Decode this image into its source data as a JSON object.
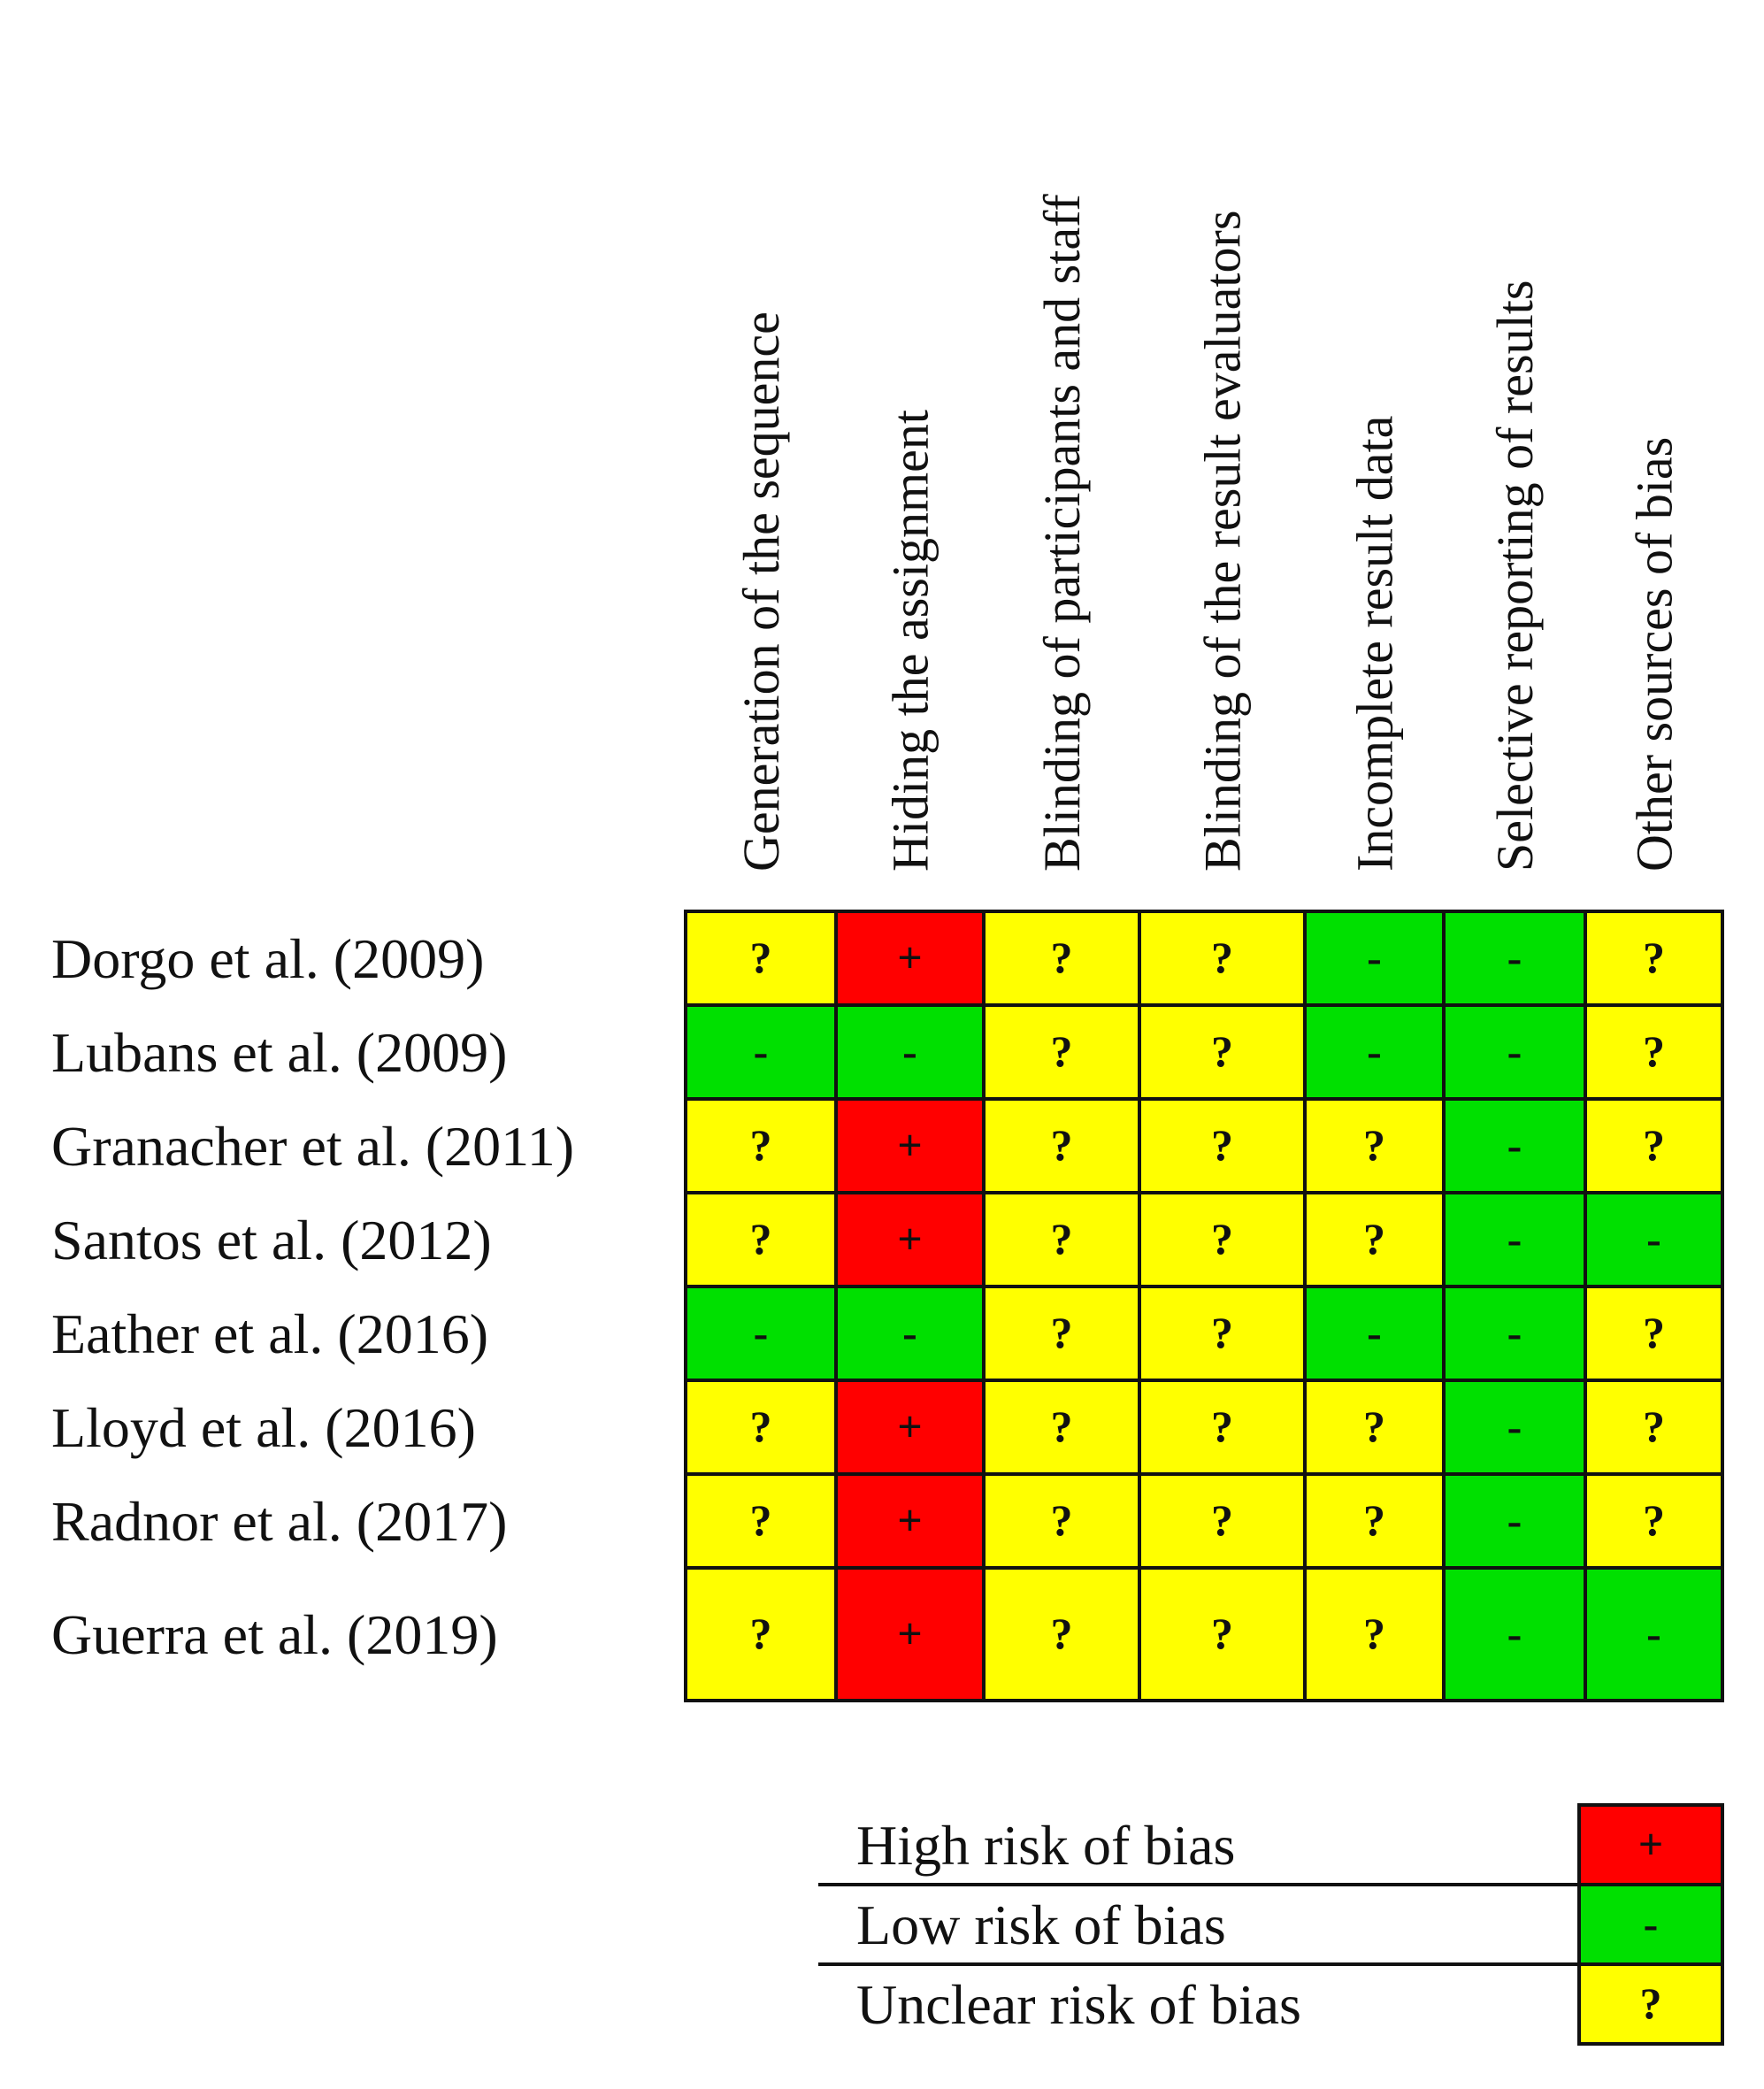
{
  "chart_data": {
    "type": "heatmap",
    "columns": [
      "Generation of the sequence",
      "Hiding the assignment",
      "Blinding of participants and staff",
      "Blinding of the result evaluators",
      "Incomplete result data",
      "Selective reporting of results",
      "Other sources of bias"
    ],
    "rows": [
      {
        "label": "Dorgo et al. (2009)",
        "values": [
          "?",
          "+",
          "?",
          "?",
          "-",
          "-",
          "?"
        ]
      },
      {
        "label": "Lubans et al. (2009)",
        "values": [
          "-",
          "-",
          "?",
          "?",
          "-",
          "-",
          "?"
        ]
      },
      {
        "label": "Granacher et al. (2011)",
        "values": [
          "?",
          "+",
          "?",
          "?",
          "?",
          "-",
          "?"
        ]
      },
      {
        "label": "Santos et al. (2012)",
        "values": [
          "?",
          "+",
          "?",
          "?",
          "?",
          "-",
          "-"
        ]
      },
      {
        "label": "Eather et al. (2016)",
        "values": [
          "-",
          "-",
          "?",
          "?",
          "-",
          "-",
          "?"
        ]
      },
      {
        "label": "Lloyd et al. (2016)",
        "values": [
          "?",
          "+",
          "?",
          "?",
          "?",
          "-",
          "?"
        ]
      },
      {
        "label": "Radnor et al. (2017)",
        "values": [
          "?",
          "+",
          "?",
          "?",
          "?",
          "-",
          "?"
        ]
      },
      {
        "label": "Guerra et al. (2019)",
        "values": [
          "?",
          "+",
          "?",
          "?",
          "?",
          "-",
          "-"
        ]
      }
    ],
    "legend": [
      {
        "label": "High risk of bias",
        "symbol": "+",
        "color": "#ff0000"
      },
      {
        "label": "Low risk of bias",
        "symbol": "-",
        "color": "#00e000"
      },
      {
        "label": "Unclear risk of bias",
        "symbol": "?",
        "color": "#ffff00"
      }
    ],
    "colors": {
      "+": "#ff0000",
      "-": "#00e000",
      "?": "#ffff00"
    }
  }
}
